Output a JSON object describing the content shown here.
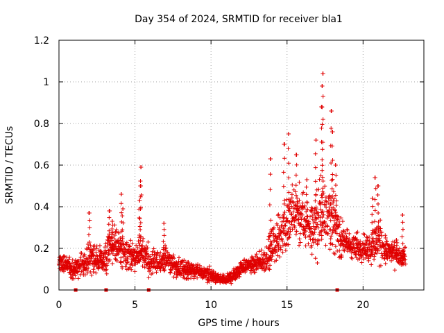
{
  "chart_data": {
    "type": "scatter",
    "title": "Day 354 of 2024, SRMTID for receiver bla1",
    "xlabel": "GPS time / hours",
    "ylabel": "SRMTID / TECUs",
    "xlim": [
      0,
      24
    ],
    "ylim": [
      0,
      1.2
    ],
    "xticks": [
      0,
      5,
      10,
      15,
      20
    ],
    "yticks": [
      0,
      0.2,
      0.4,
      0.6,
      0.8,
      1,
      1.2
    ],
    "grid": true,
    "marker": "plus",
    "color": "#e00000",
    "data_gap_markers_x": [
      1.1,
      3.1,
      5.9,
      18.3
    ],
    "envelope": {
      "x": [
        0.0,
        0.5,
        1.0,
        1.5,
        2.0,
        2.5,
        3.0,
        3.5,
        4.0,
        4.5,
        5.0,
        5.5,
        6.0,
        6.5,
        7.0,
        7.5,
        8.0,
        8.5,
        9.0,
        9.5,
        10.0,
        10.5,
        11.0,
        11.5,
        12.0,
        12.5,
        13.0,
        13.5,
        14.0,
        14.5,
        15.0,
        15.5,
        16.0,
        16.5,
        17.0,
        17.5,
        18.0,
        18.5,
        19.0,
        19.5,
        20.0,
        20.5,
        21.0,
        21.5,
        22.0,
        22.5,
        22.8
      ],
      "mean": [
        0.14,
        0.12,
        0.1,
        0.12,
        0.16,
        0.15,
        0.14,
        0.22,
        0.2,
        0.17,
        0.15,
        0.2,
        0.12,
        0.13,
        0.15,
        0.12,
        0.1,
        0.1,
        0.09,
        0.08,
        0.07,
        0.05,
        0.05,
        0.07,
        0.11,
        0.12,
        0.12,
        0.14,
        0.2,
        0.26,
        0.32,
        0.36,
        0.34,
        0.3,
        0.33,
        0.4,
        0.35,
        0.25,
        0.22,
        0.2,
        0.21,
        0.2,
        0.24,
        0.19,
        0.17,
        0.15,
        0.16
      ],
      "spread": [
        0.05,
        0.04,
        0.04,
        0.05,
        0.07,
        0.06,
        0.06,
        0.08,
        0.08,
        0.06,
        0.06,
        0.09,
        0.05,
        0.05,
        0.05,
        0.04,
        0.04,
        0.04,
        0.03,
        0.03,
        0.03,
        0.02,
        0.02,
        0.03,
        0.03,
        0.03,
        0.04,
        0.05,
        0.08,
        0.1,
        0.13,
        0.14,
        0.12,
        0.11,
        0.14,
        0.18,
        0.14,
        0.08,
        0.06,
        0.06,
        0.06,
        0.07,
        0.1,
        0.06,
        0.05,
        0.04,
        0.04
      ]
    },
    "peaks": [
      {
        "x": 2.0,
        "y": 0.37
      },
      {
        "x": 3.3,
        "y": 0.38
      },
      {
        "x": 3.5,
        "y": 0.33
      },
      {
        "x": 4.1,
        "y": 0.46
      },
      {
        "x": 4.2,
        "y": 0.39
      },
      {
        "x": 5.4,
        "y": 0.59
      },
      {
        "x": 5.35,
        "y": 0.5
      },
      {
        "x": 5.3,
        "y": 0.43
      },
      {
        "x": 6.9,
        "y": 0.32
      },
      {
        "x": 13.9,
        "y": 0.63
      },
      {
        "x": 14.8,
        "y": 0.7
      },
      {
        "x": 15.1,
        "y": 0.75
      },
      {
        "x": 15.6,
        "y": 0.65
      },
      {
        "x": 16.3,
        "y": 0.53
      },
      {
        "x": 16.9,
        "y": 0.72
      },
      {
        "x": 17.3,
        "y": 0.88
      },
      {
        "x": 17.35,
        "y": 1.04
      },
      {
        "x": 17.3,
        "y": 0.98
      },
      {
        "x": 17.9,
        "y": 0.86
      },
      {
        "x": 18.0,
        "y": 0.76
      },
      {
        "x": 18.2,
        "y": 0.6
      },
      {
        "x": 20.8,
        "y": 0.54
      },
      {
        "x": 21.0,
        "y": 0.5
      },
      {
        "x": 20.6,
        "y": 0.44
      },
      {
        "x": 22.6,
        "y": 0.36
      },
      {
        "x": 22.2,
        "y": 0.24
      }
    ]
  }
}
